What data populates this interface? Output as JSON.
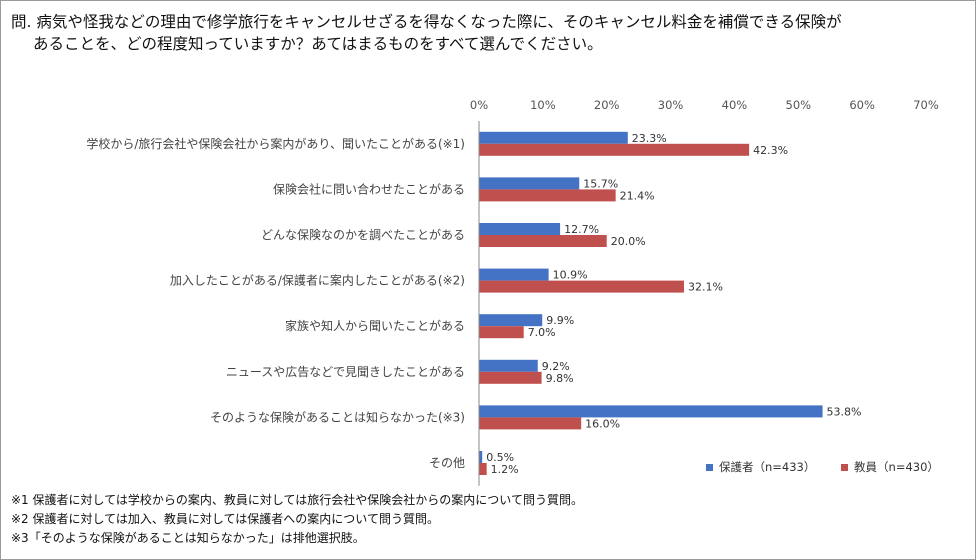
{
  "question": {
    "line1": "問. 病気や怪我などの理由で修学旅行をキャンセルせざるを得なくなった際に、そのキャンセル料金を補償できる保険が",
    "line2": "あることを、どの程度知っていますか？あてはまるものをすべて選んでください。"
  },
  "chart_data": {
    "type": "bar",
    "orientation": "horizontal",
    "categories": [
      "学校から/旅行会社や保険会社から案内があり、聞いたことがある(※1)",
      "保険会社に問い合わせたことがある",
      "どんな保険なのかを調べたことがある",
      "加入したことがある/保護者に案内したことがある(※2)",
      "家族や知人から聞いたことがある",
      "ニュースや広告などで見聞きしたことがある",
      "そのような保険があることは知らなかった(※3)",
      "その他"
    ],
    "series": [
      {
        "name": "保護者（n=433）",
        "color": "#4472c4",
        "values": [
          23.3,
          15.7,
          12.7,
          10.9,
          9.9,
          9.2,
          53.8,
          0.5
        ],
        "labels": [
          "23.3%",
          "15.7%",
          "12.7%",
          "10.9%",
          "9.9%",
          "9.2%",
          "53.8%",
          "0.5%"
        ]
      },
      {
        "name": "教員（n=430）",
        "color": "#c0504d",
        "values": [
          42.3,
          21.4,
          20.0,
          32.1,
          7.0,
          9.8,
          16.0,
          1.2
        ],
        "labels": [
          "42.3%",
          "21.4%",
          "20.0%",
          "32.1%",
          "7.0%",
          "9.8%",
          "16.0%",
          "1.2%"
        ]
      }
    ],
    "xlim": [
      0,
      70
    ],
    "x_ticks": [
      "0%",
      "10%",
      "20%",
      "30%",
      "40%",
      "50%",
      "60%",
      "70%"
    ],
    "grid": false,
    "legend_position": "bottom-right"
  },
  "notes": [
    "※1 保護者に対しては学校からの案内、教員に対しては旅行会社や保険会社からの案内について問う質問。",
    "※2 保護者に対しては加入、教員に対しては保護者への案内について問う質問。",
    "※3「そのような保険があることは知らなかった」は排他選択肢。"
  ]
}
